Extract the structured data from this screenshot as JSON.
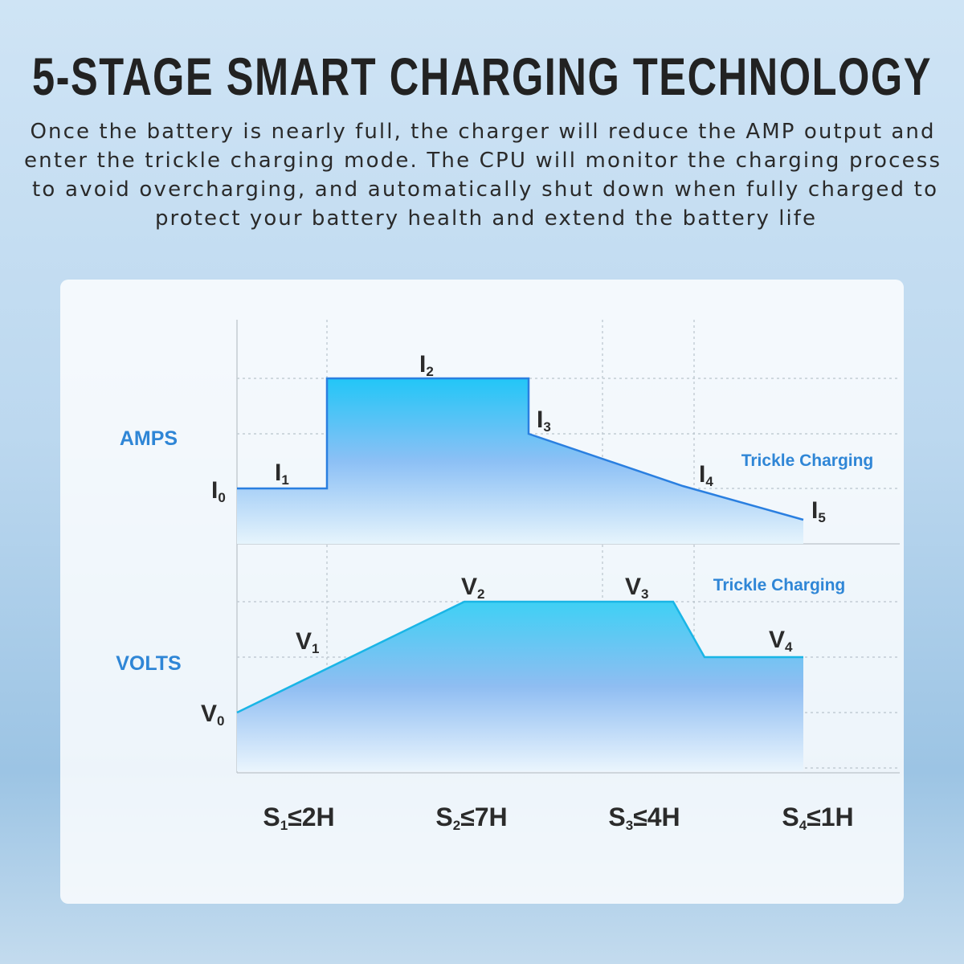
{
  "header": {
    "title": "5-STAGE SMART CHARGING TECHNOLOGY",
    "description": [
      "Once the battery is nearly full, the charger will reduce the AMP output and",
      "enter the trickle charging mode. The CPU will monitor the charging process",
      "to avoid overcharging, and automatically shut down when fully charged to",
      "protect your battery health and extend the battery life"
    ]
  },
  "amps": {
    "label": "AMPS",
    "trickle": "Trickle Charging",
    "points": [
      {
        "base": "I",
        "sub": "0"
      },
      {
        "base": "I",
        "sub": "1"
      },
      {
        "base": "I",
        "sub": "2"
      },
      {
        "base": "I",
        "sub": "3"
      },
      {
        "base": "I",
        "sub": "4"
      },
      {
        "base": "I",
        "sub": "5"
      }
    ]
  },
  "volts": {
    "label": "VOLTS",
    "trickle": "Trickle Charging",
    "points": [
      {
        "base": "V",
        "sub": "0"
      },
      {
        "base": "V",
        "sub": "1"
      },
      {
        "base": "V",
        "sub": "2"
      },
      {
        "base": "V",
        "sub": "3"
      },
      {
        "base": "V",
        "sub": "4"
      }
    ]
  },
  "stages": [
    {
      "base": "S",
      "sub": "1",
      "limit": "≤2H"
    },
    {
      "base": "S",
      "sub": "2",
      "limit": "≤7H"
    },
    {
      "base": "S",
      "sub": "3",
      "limit": "≤4H"
    },
    {
      "base": "S",
      "sub": "4",
      "limit": "≤1H"
    }
  ]
}
